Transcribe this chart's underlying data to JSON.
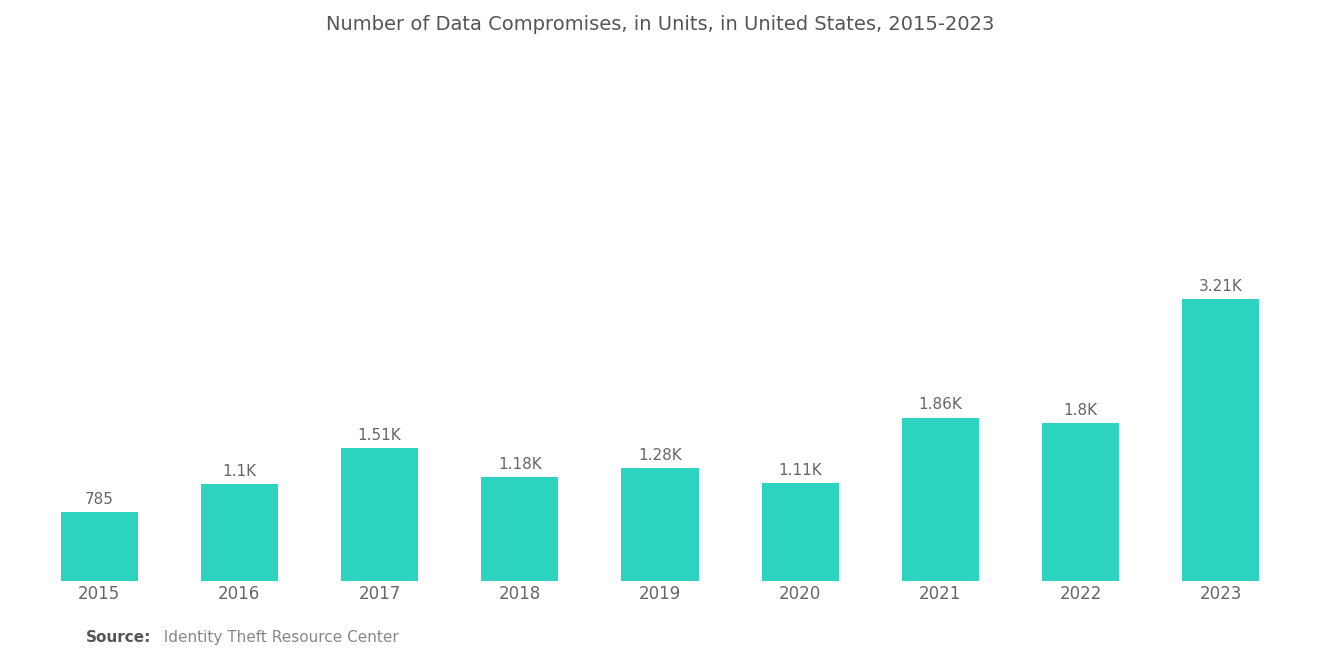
{
  "title": "Number of Data Compromises, in Units, in United States, 2015-2023",
  "categories": [
    "2015",
    "2016",
    "2017",
    "2018",
    "2019",
    "2020",
    "2021",
    "2022",
    "2023"
  ],
  "values": [
    785,
    1100,
    1510,
    1180,
    1280,
    1110,
    1860,
    1800,
    3210
  ],
  "labels": [
    "785",
    "1.1K",
    "1.51K",
    "1.18K",
    "1.28K",
    "1.11K",
    "1.86K",
    "1.8K",
    "3.21K"
  ],
  "bar_color": "#2DD4BF",
  "background_color": "#ffffff",
  "title_color": "#555555",
  "label_color": "#666666",
  "tick_color": "#666666",
  "source_bold": "Source:",
  "source_text": "  Identity Theft Resource Center",
  "title_fontsize": 14,
  "label_fontsize": 11,
  "tick_fontsize": 12,
  "source_fontsize": 11,
  "ylim": [
    0,
    6000
  ],
  "bar_width": 0.55
}
